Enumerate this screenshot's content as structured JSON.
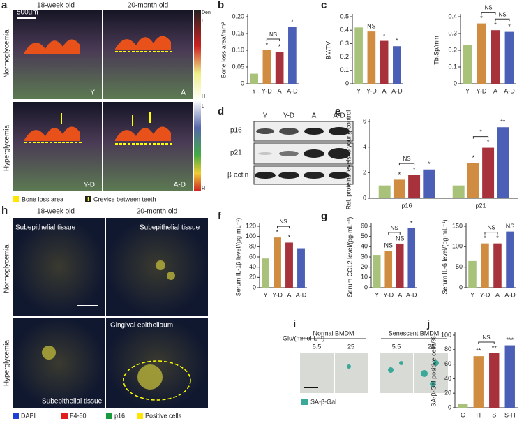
{
  "figure": {
    "letters": [
      "a",
      "b",
      "c",
      "d",
      "e",
      "f",
      "g",
      "h",
      "i",
      "j"
    ]
  },
  "panel_a": {
    "cols": [
      "18-week old",
      "20-month old"
    ],
    "rows": [
      "Normoglycemia",
      "Hyperglycemia"
    ],
    "scale": "500um",
    "tags": [
      "Y",
      "A",
      "Y-D",
      "A-D"
    ],
    "colorbar": [
      "Den",
      "L",
      "H",
      "L",
      "H"
    ],
    "legend": [
      "Bone loss area",
      "Crevice between teeth"
    ]
  },
  "panel_d": {
    "columns": [
      "Y",
      "Y-D",
      "A",
      "A-D"
    ],
    "rows": [
      "p16",
      "p21",
      "β-actin"
    ]
  },
  "panel_h": {
    "cols": [
      "18-week old",
      "20-month old"
    ],
    "rows": [
      "Normoglycemia",
      "Hyperglycemia"
    ],
    "tissue": [
      "Subepithelial tissue",
      "Subepithelial tissue",
      "Subepithelial tissue",
      "Gingival epitheliaum"
    ],
    "legend": [
      "DAPI",
      "F4-80",
      "p16",
      "Positive cells"
    ]
  },
  "panel_i": {
    "axis": "Glu/(mmol·L⁻¹)",
    "groups": [
      "Normal BMDM",
      "Senescent BMDM"
    ],
    "conc": [
      "5.5",
      "25",
      "5.5",
      "25"
    ],
    "legend": "SA-β-Gal"
  },
  "chart_data": [
    {
      "type": "bar",
      "ylabel": "Bone loss area/mm²",
      "categories": [
        "Y",
        "Y-D",
        "A",
        "A-D"
      ],
      "values": [
        0.03,
        0.1,
        0.095,
        0.17
      ],
      "colors": [
        "#a9c27a",
        "#d08c40",
        "#a8323c",
        "#4a5fb5"
      ],
      "ylim": [
        0,
        0.2
      ],
      "yticks": [
        0,
        0.05,
        {
          "value": 0.1,
          "label": "0.10"
        },
        0.15,
        {
          "value": 0.2,
          "label": "0.20"
        }
      ],
      "star_labels": [
        null,
        "*",
        "*",
        "*"
      ],
      "brackets": [
        {
          "from": "Y-D",
          "to": "A",
          "label": "NS"
        }
      ]
    },
    {
      "type": "bar",
      "ylabel": "BV/TV",
      "categories": [
        "Y",
        "Y-D",
        "A",
        "A-D"
      ],
      "values": [
        0.42,
        0.39,
        0.32,
        0.28
      ],
      "colors": [
        "#a9c27a",
        "#d08c40",
        "#a8323c",
        "#4a5fb5"
      ],
      "ylim": [
        0,
        0.5
      ],
      "yticks": [
        0,
        0.1,
        0.2,
        0.3,
        0.4,
        0.5
      ],
      "star_labels": [
        null,
        "NS",
        "*",
        "*"
      ],
      "brackets": []
    },
    {
      "type": "bar",
      "ylabel": "Tb.Sp/mm",
      "categories": [
        "Y",
        "Y-D",
        "A",
        "A-D"
      ],
      "values": [
        0.23,
        0.36,
        0.32,
        0.31
      ],
      "colors": [
        "#a9c27a",
        "#d08c40",
        "#a8323c",
        "#4a5fb5"
      ],
      "ylim": [
        0,
        0.4
      ],
      "yticks": [
        0,
        0.1,
        0.2,
        0.3,
        0.4
      ],
      "star_labels": [
        null,
        "*",
        "*",
        "*"
      ],
      "brackets": [
        {
          "from": "Y-D",
          "to": "A",
          "label": "NS"
        },
        {
          "from": "A",
          "to": "A-D",
          "label": "NS"
        }
      ]
    },
    {
      "type": "grouped_bar",
      "ylabel": "Rel. proteins levels to young control",
      "categories": [
        "p16",
        "p21"
      ],
      "ylim": [
        0,
        6
      ],
      "yticks": [
        0,
        2,
        4,
        6
      ],
      "series": [
        {
          "name": "Y",
          "color": "#a9c27a",
          "values": [
            1,
            1
          ],
          "star_labels": [
            null,
            null
          ]
        },
        {
          "name": "Y-D",
          "color": "#d08c40",
          "values": [
            1.45,
            2.75
          ],
          "star_labels": [
            "*",
            "*"
          ]
        },
        {
          "name": "A",
          "color": "#a8323c",
          "values": [
            1.85,
            3.95
          ],
          "star_labels": [
            "*",
            "*"
          ]
        },
        {
          "name": "A-D",
          "color": "#4a5fb5",
          "values": [
            2.25,
            5.55
          ],
          "star_labels": [
            "*",
            "**"
          ]
        }
      ],
      "brackets": [
        {
          "group": "p16",
          "from": "Y-D",
          "to": "A",
          "label": "NS"
        },
        {
          "group": "p21",
          "from": "Y-D",
          "to": "A",
          "label": "*"
        }
      ]
    },
    {
      "type": "bar",
      "ylabel": "Serum IL-1β level/(pg·mL⁻¹)",
      "categories": [
        "Y",
        "Y-D",
        "A",
        "A-D"
      ],
      "values": [
        57,
        98,
        88,
        77
      ],
      "colors": [
        "#a9c27a",
        "#d08c40",
        "#a8323c",
        "#4a5fb5"
      ],
      "ylim": [
        0,
        120
      ],
      "yticks": [
        0,
        20,
        40,
        60,
        80,
        100,
        120
      ],
      "star_labels": [
        null,
        "*",
        "*",
        null
      ],
      "brackets": [
        {
          "from": "Y-D",
          "to": "A",
          "label": "NS"
        }
      ]
    },
    {
      "type": "bar",
      "ylabel": "Serum CCL2 level/(pg·mL⁻¹)",
      "categories": [
        "Y",
        "Y-D",
        "A",
        "A-D"
      ],
      "values": [
        32,
        36,
        43,
        58
      ],
      "colors": [
        "#a9c27a",
        "#d08c40",
        "#a8323c",
        "#4a5fb5"
      ],
      "ylim": [
        0,
        60
      ],
      "yticks": [
        0,
        10,
        20,
        30,
        40,
        50,
        60
      ],
      "star_labels": [
        null,
        "NS",
        "NS",
        "*"
      ],
      "brackets": [
        {
          "from": "Y-D",
          "to": "A",
          "label": "NS"
        }
      ]
    },
    {
      "type": "bar",
      "ylabel": "Serum IL-6 level/(pg·mL⁻¹)",
      "categories": [
        "Y",
        "Y-D",
        "A",
        "A-D"
      ],
      "values": [
        65,
        108,
        108,
        137
      ],
      "colors": [
        "#a9c27a",
        "#d08c40",
        "#a8323c",
        "#4a5fb5"
      ],
      "ylim": [
        0,
        150
      ],
      "yticks": [
        0,
        50,
        100,
        150
      ],
      "star_labels": [
        null,
        "*",
        "*",
        "NS"
      ],
      "brackets": [
        {
          "from": "Y-D",
          "to": "A",
          "label": "NS"
        }
      ]
    },
    {
      "type": "bar",
      "ylabel": "SA-β-Gal positive cells/%",
      "categories": [
        "C",
        "H",
        "S",
        "S-H"
      ],
      "values": [
        5,
        71,
        75,
        86
      ],
      "colors": [
        "#a9c27a",
        "#d08c40",
        "#a8323c",
        "#4a5fb5"
      ],
      "ylim": [
        0,
        100
      ],
      "yticks": [
        0,
        20,
        40,
        60,
        80,
        100
      ],
      "star_labels": [
        null,
        "**",
        "**",
        "***"
      ],
      "brackets": [
        {
          "from": "H",
          "to": "S",
          "label": "NS"
        }
      ]
    }
  ]
}
